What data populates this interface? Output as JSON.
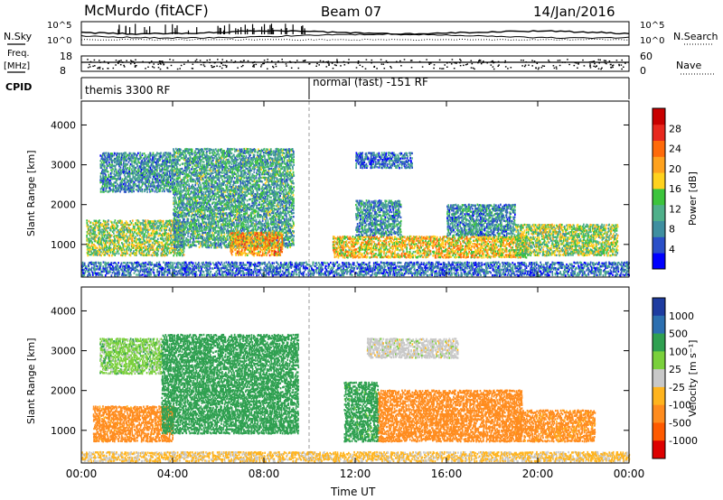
{
  "header": {
    "station": "McMurdo (fitACF)",
    "beam": "Beam 07",
    "date": "14/Jan/2016"
  },
  "mini_panels": {
    "nsky_label": "N.Sky",
    "nsearch_label": "N.Search",
    "nsky_ticks": [
      "10^5",
      "10^0"
    ],
    "nsearch_ticks": [
      "10^5",
      "10^0"
    ],
    "freq_label": "Freq.",
    "freq_unit": "[MHz]",
    "freq_ticks": [
      "18",
      "8"
    ],
    "nave_label": "Nave",
    "nave_ticks": [
      "60",
      "0"
    ],
    "cpid_label": "CPID",
    "cpid_segments": [
      {
        "label": "themis 3300 RF",
        "start_hour": 0,
        "end_hour": 10
      },
      {
        "label": "normal (fast) -151 RF",
        "start_hour": 10,
        "end_hour": 24
      }
    ]
  },
  "colors": {
    "power_scale": [
      "#0000ff",
      "#2a4fc8",
      "#3f8fa0",
      "#4fb08a",
      "#3cc43c",
      "#ffd21e",
      "#ffa21e",
      "#ff6a0a",
      "#e8281e",
      "#c80000"
    ],
    "velocity_scale": [
      "#dd0000",
      "#ff5a00",
      "#ff8c1e",
      "#ffb41e",
      "#c8c8c8",
      "#7ad03c",
      "#2fa050",
      "#2c6fb0",
      "#1e3ca0"
    ],
    "ground_scatter": "#b4b4b4"
  },
  "chart_data": [
    {
      "type": "heatmap",
      "name": "power",
      "xlabel": "",
      "ylabel": "Slant Range [km]",
      "xlim": [
        0,
        24
      ],
      "ylim": [
        180,
        4600
      ],
      "yticks": [
        1000,
        2000,
        3000,
        4000
      ],
      "colorbar": {
        "label": "Power [dB]",
        "ticks": [
          4,
          8,
          12,
          16,
          20,
          24,
          28
        ],
        "range": [
          0,
          32
        ]
      },
      "scatter_regions": [
        {
          "t0": 0.2,
          "t1": 4.5,
          "r0": 700,
          "r1": 1600,
          "value": 14
        },
        {
          "t0": 0.8,
          "t1": 4.0,
          "r0": 2300,
          "r1": 3300,
          "value": 8
        },
        {
          "t0": 4.0,
          "t1": 9.3,
          "r0": 900,
          "r1": 3400,
          "value": 10
        },
        {
          "t0": 6.5,
          "t1": 8.8,
          "r0": 700,
          "r1": 1300,
          "value": 20
        },
        {
          "t0": 11.0,
          "t1": 19.5,
          "r0": 650,
          "r1": 1200,
          "value": 18
        },
        {
          "t0": 12.0,
          "t1": 14.0,
          "r0": 1200,
          "r1": 2100,
          "value": 8
        },
        {
          "t0": 16.0,
          "t1": 19.0,
          "r0": 1200,
          "r1": 2000,
          "value": 8
        },
        {
          "t0": 19.0,
          "t1": 23.5,
          "r0": 700,
          "r1": 1500,
          "value": 14
        },
        {
          "t0": 12.0,
          "t1": 14.5,
          "r0": 2900,
          "r1": 3300,
          "value": 6
        },
        {
          "t0": 0.0,
          "t1": 24.0,
          "r0": 200,
          "r1": 550,
          "value": 6
        }
      ]
    },
    {
      "type": "heatmap",
      "name": "velocity",
      "xlabel": "Time UT",
      "ylabel": "Slant Range [km]",
      "xlim": [
        0,
        24
      ],
      "ylim": [
        180,
        4600
      ],
      "xticks": [
        "00:00",
        "04:00",
        "08:00",
        "12:00",
        "16:00",
        "20:00",
        "00:00"
      ],
      "yticks": [
        1000,
        2000,
        3000,
        4000
      ],
      "colorbar": {
        "label": "Velocity [m s⁻¹]",
        "ticks": [
          "1000",
          "500",
          "100",
          "25",
          "-25",
          "-100",
          "-500",
          "-1000"
        ]
      },
      "scatter_regions": [
        {
          "t0": 0.5,
          "t1": 4.0,
          "r0": 700,
          "r1": 1600,
          "value": -200
        },
        {
          "t0": 3.5,
          "t1": 9.5,
          "r0": 900,
          "r1": 3400,
          "value": 300
        },
        {
          "t0": 0.8,
          "t1": 3.5,
          "r0": 2400,
          "r1": 3300,
          "value": 60
        },
        {
          "t0": 11.5,
          "t1": 13.0,
          "r0": 700,
          "r1": 2200,
          "value": 200
        },
        {
          "t0": 13.0,
          "t1": 19.3,
          "r0": 700,
          "r1": 2000,
          "value": -250
        },
        {
          "t0": 19.0,
          "t1": 22.5,
          "r0": 700,
          "r1": 1500,
          "value": -180
        },
        {
          "t0": 12.5,
          "t1": 16.5,
          "r0": 2800,
          "r1": 3300,
          "value": 0
        },
        {
          "t0": 0.0,
          "t1": 24.0,
          "r0": 200,
          "r1": 450,
          "value": -40
        }
      ]
    }
  ]
}
